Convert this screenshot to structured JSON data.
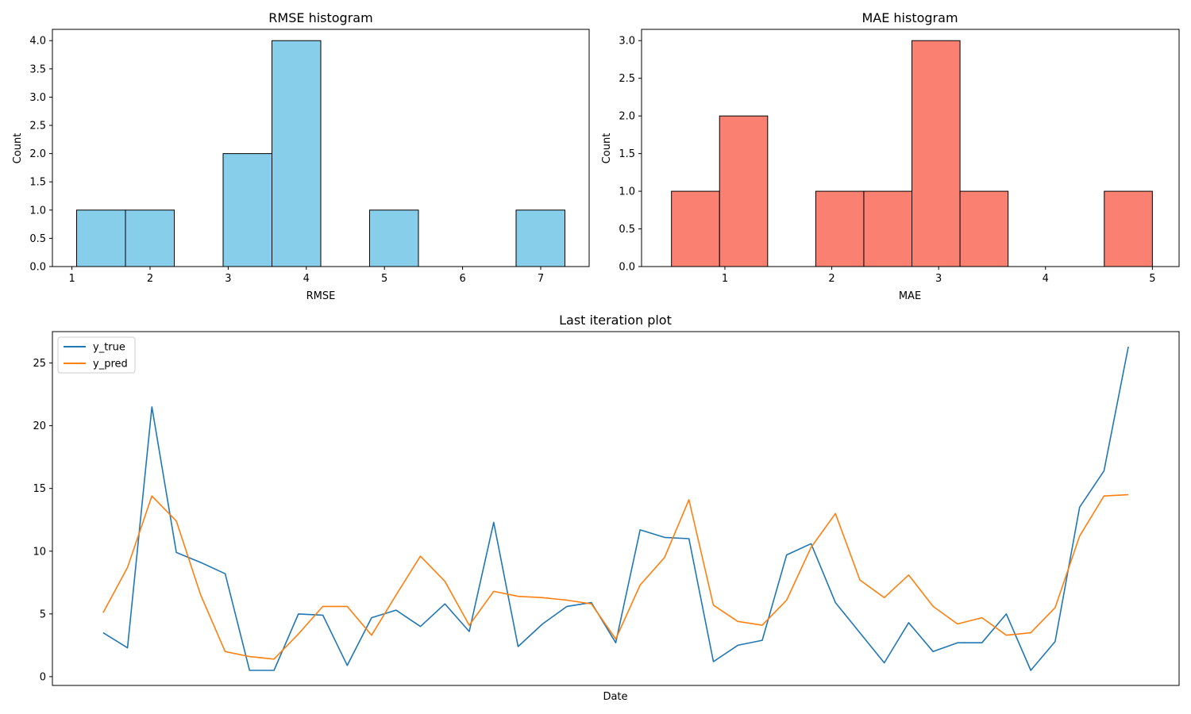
{
  "chart_data": [
    {
      "id": "rmse",
      "type": "bar",
      "title": "RMSE histogram",
      "xlabel": "RMSE",
      "ylabel": "Count",
      "color": "#87ceeb",
      "edgecolor": "#000000",
      "bin_edges": [
        1.06,
        1.685,
        2.31,
        2.935,
        3.56,
        4.185,
        4.81,
        5.435,
        6.06,
        6.685,
        7.31
      ],
      "values": [
        1,
        1,
        0,
        2,
        4,
        0,
        1,
        0,
        0,
        1
      ],
      "xlim": [
        0.75,
        7.62
      ],
      "ylim": [
        0,
        4.2
      ],
      "xticks": [
        1,
        2,
        3,
        4,
        5,
        6,
        7
      ],
      "yticks": [
        0.0,
        0.5,
        1.0,
        1.5,
        2.0,
        2.5,
        3.0,
        3.5,
        4.0
      ]
    },
    {
      "id": "mae",
      "type": "bar",
      "title": "MAE histogram",
      "xlabel": "MAE",
      "ylabel": "Count",
      "color": "#fa8072",
      "edgecolor": "#000000",
      "bin_edges": [
        0.5,
        0.95,
        1.4,
        1.85,
        2.3,
        2.75,
        3.2,
        3.65,
        4.1,
        4.55,
        5.0
      ],
      "values": [
        1,
        2,
        0,
        1,
        1,
        3,
        1,
        0,
        0,
        1
      ],
      "xlim": [
        0.22,
        5.25
      ],
      "ylim": [
        0,
        3.15
      ],
      "xticks": [
        1,
        2,
        3,
        4,
        5
      ],
      "yticks": [
        0.0,
        0.5,
        1.0,
        1.5,
        2.0,
        2.5,
        3.0
      ]
    },
    {
      "id": "last",
      "type": "line",
      "title": "Last iteration plot",
      "xlabel": "Date",
      "ylabel": "",
      "ylim": [
        -0.7,
        27.5
      ],
      "yticks": [
        0,
        5,
        10,
        15,
        20,
        25
      ],
      "legend": "upper-left",
      "series": [
        {
          "name": "y_true",
          "color": "#1f77b4",
          "values": [
            3.5,
            2.3,
            21.5,
            9.9,
            9.1,
            8.2,
            0.5,
            0.5,
            5.0,
            4.9,
            0.9,
            4.7,
            5.3,
            4.0,
            5.8,
            3.6,
            12.3,
            2.4,
            4.2,
            5.6,
            5.9,
            2.7,
            11.7,
            11.1,
            11.0,
            1.2,
            2.5,
            2.9,
            9.7,
            10.6,
            5.9,
            3.5,
            1.1,
            4.3,
            2.0,
            2.7,
            2.7,
            5.0,
            0.5,
            2.8,
            13.5,
            16.4,
            26.3
          ]
        },
        {
          "name": "y_pred",
          "color": "#ff7f0e",
          "values": [
            5.1,
            8.7,
            14.4,
            12.4,
            6.5,
            2.0,
            1.6,
            1.4,
            3.4,
            5.6,
            5.6,
            3.3,
            6.5,
            9.6,
            7.6,
            4.1,
            6.8,
            6.4,
            6.3,
            6.1,
            5.8,
            3.0,
            7.3,
            9.5,
            14.1,
            5.7,
            4.4,
            4.1,
            6.1,
            10.3,
            13.0,
            7.7,
            6.3,
            8.1,
            5.6,
            4.2,
            4.7,
            3.3,
            3.5,
            5.5,
            11.2,
            14.4,
            14.5
          ]
        }
      ]
    }
  ]
}
